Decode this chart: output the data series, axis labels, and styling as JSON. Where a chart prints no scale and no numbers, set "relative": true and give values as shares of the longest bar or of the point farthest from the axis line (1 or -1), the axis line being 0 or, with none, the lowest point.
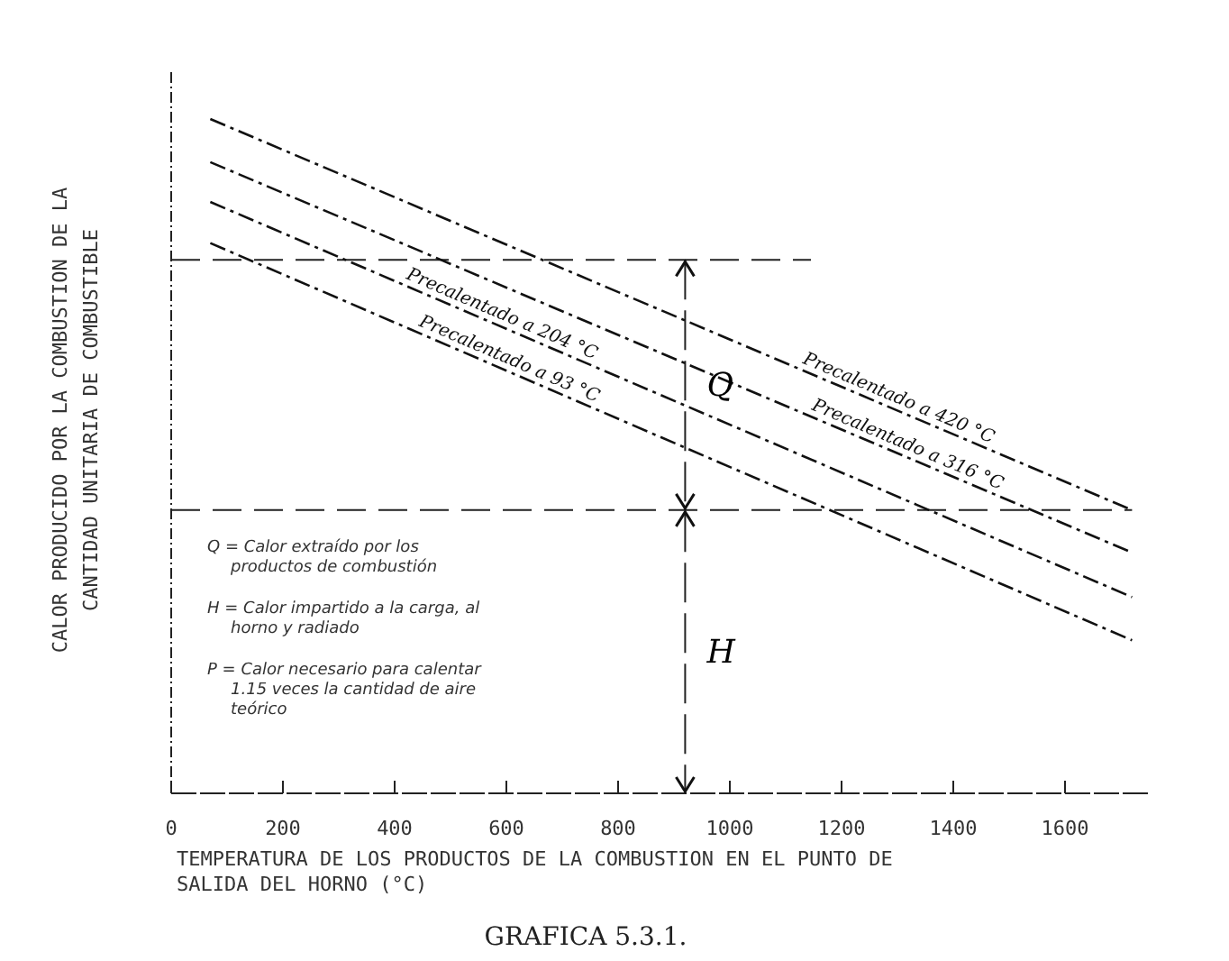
{
  "chart_data": {
    "type": "line",
    "relative": true,
    "title": "GRAFICA 5.3.1.",
    "xlabel": "TEMPERATURA DE LOS PRODUCTOS DE LA COMBUSTION EN EL PUNTO DE SALIDA DEL HORNO (°C)",
    "ylabel": "CALOR PRODUCIDO POR LA COMBUSTION DE LA CANTIDAD UNITARIA DE COMBUSTIBLE",
    "xlim": [
      0,
      1750
    ],
    "x": [
      70,
      1720
    ],
    "xticks": [
      0,
      200,
      400,
      600,
      800,
      1000,
      1200,
      1400,
      1600
    ],
    "line_style": "dashed",
    "legend": false,
    "grid": false,
    "series": [
      {
        "name": "Precalentado a 420 °C",
        "color": "#111111",
        "values": [
          1,
          0.42
        ]
      },
      {
        "name": "Precalentado a 316 °C",
        "color": "#111111",
        "values": [
          0.936,
          0.357
        ]
      },
      {
        "name": "Precalentado a 204 °C",
        "color": "#111111",
        "values": [
          0.877,
          0.291
        ]
      },
      {
        "name": "Precalentado a 93 °C",
        "color": "#111111",
        "values": [
          0.816,
          0.227
        ]
      }
    ],
    "ref_lines": [
      {
        "axis": "y",
        "value": 0.791
      },
      {
        "axis": "y",
        "value": 0.42
      },
      {
        "axis": "x",
        "value": 920
      }
    ],
    "annotations": [
      "Q",
      "H",
      "Q = Calor extraído por los productos de combustión",
      "H = Calor impartido a la carga, al horno y radiado",
      "P = Calor necesario para calentar 1.15 veces la cantidad de aire teórico"
    ]
  }
}
